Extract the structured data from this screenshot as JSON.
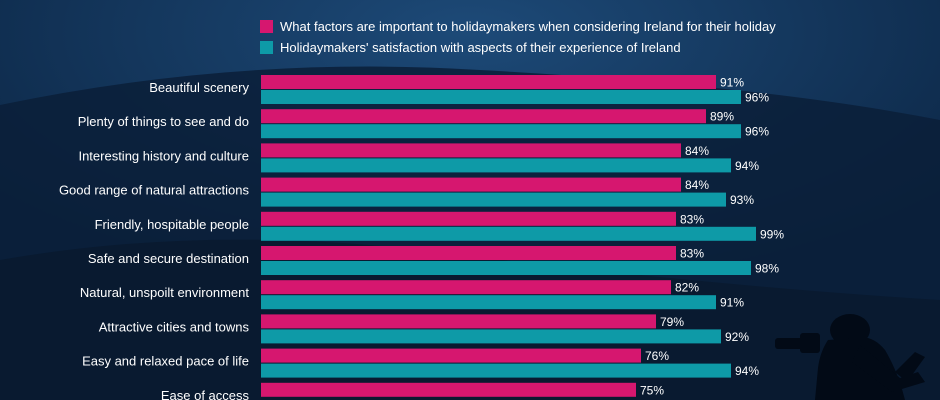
{
  "chart_data": {
    "type": "bar",
    "orientation": "horizontal",
    "categories": [
      "Beautiful scenery",
      "Plenty of things to see and do",
      "Interesting history and culture",
      "Good range of natural attractions",
      "Friendly, hospitable people",
      "Safe and secure destination",
      "Natural, unspoilt environment",
      "Attractive cities and towns",
      "Easy and relaxed pace of life",
      "Ease of access"
    ],
    "series": [
      {
        "name": "What factors are important to holidaymakers when considering Ireland for their holiday",
        "color": "#d6176f",
        "values": [
          91,
          89,
          84,
          84,
          83,
          83,
          82,
          79,
          76,
          75
        ],
        "labels": [
          "91%",
          "89%",
          "84%",
          "84%",
          "83%",
          "83%",
          "82%",
          "79%",
          "76%",
          "75%"
        ]
      },
      {
        "name": "Holidaymakers' satisfaction with aspects of their experience of Ireland",
        "color": "#0e9aa7",
        "values": [
          96,
          96,
          94,
          93,
          99,
          98,
          91,
          92,
          94,
          null
        ],
        "labels": [
          "96%",
          "96%",
          "94%",
          "93%",
          "99%",
          "98%",
          "91%",
          "92%",
          "94%",
          ""
        ]
      }
    ],
    "legend_position": "top",
    "grid": false,
    "xlim": [
      0,
      100
    ],
    "title": "",
    "xlabel": "",
    "ylabel": ""
  }
}
